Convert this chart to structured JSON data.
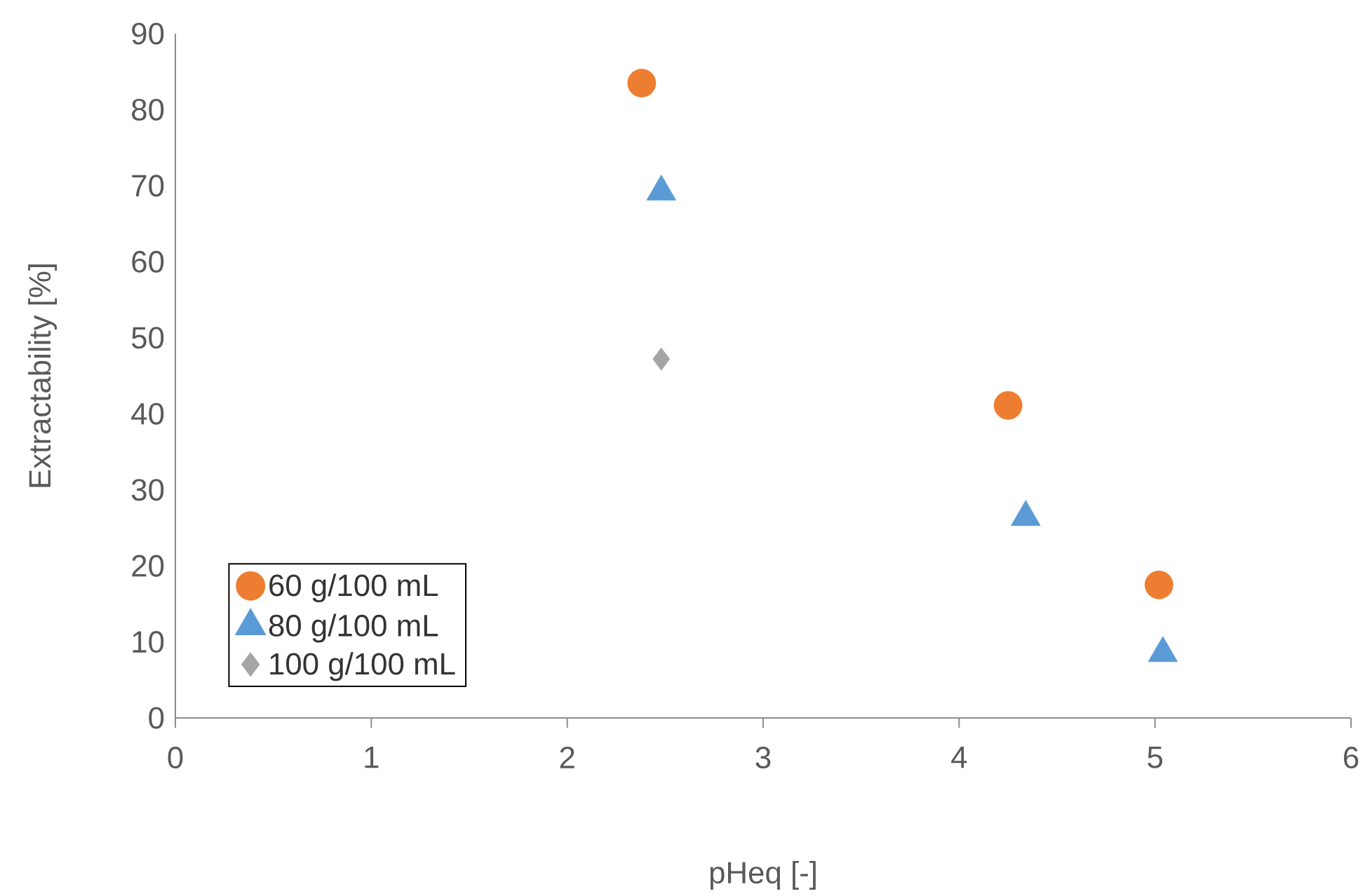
{
  "chart_data": {
    "type": "scatter",
    "xlabel": "pHeq [-]",
    "ylabel": "Extractability [%]",
    "xlim": [
      0,
      6
    ],
    "xticks": [
      0,
      1,
      2,
      3,
      4,
      5,
      6
    ],
    "ylim": [
      0,
      90
    ],
    "yticks": [
      0,
      10,
      20,
      30,
      40,
      50,
      60,
      70,
      80,
      90
    ],
    "grid": false,
    "legend": "bottom left",
    "series": [
      {
        "name": "60 g/100 mL",
        "color": "#ed7d31",
        "marker": "circle",
        "x": [
          2.38,
          4.25,
          5.02
        ],
        "values": [
          83.5,
          41.1,
          17.5
        ]
      },
      {
        "name": "80 g/100 mL",
        "color": "#5b9bd5",
        "marker": "triangle",
        "x": [
          2.48,
          4.34,
          5.04
        ],
        "values": [
          69.2,
          26.4,
          8.5
        ]
      },
      {
        "name": "100 g/100 mL",
        "color": "#a5a5a5",
        "marker": "diamond",
        "x": [
          2.48
        ],
        "values": [
          47.2
        ]
      }
    ]
  }
}
